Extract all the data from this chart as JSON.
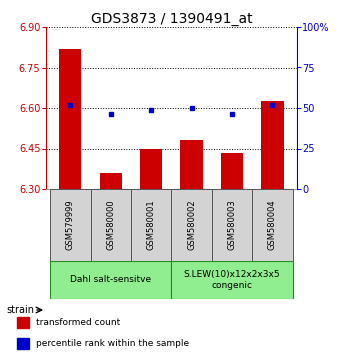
{
  "title": "GDS3873 / 1390491_at",
  "samples": [
    "GSM579999",
    "GSM580000",
    "GSM580001",
    "GSM580002",
    "GSM580003",
    "GSM580004"
  ],
  "red_values": [
    6.82,
    6.36,
    6.45,
    6.48,
    6.435,
    6.625
  ],
  "blue_values": [
    52,
    46,
    49,
    50,
    46,
    52
  ],
  "ylim_left": [
    6.3,
    6.9
  ],
  "ylim_right": [
    0,
    100
  ],
  "yticks_left": [
    6.3,
    6.45,
    6.6,
    6.75,
    6.9
  ],
  "yticks_right": [
    0,
    25,
    50,
    75,
    100
  ],
  "bar_color": "#cc0000",
  "dot_color": "#0000cc",
  "bar_bottom": 6.3,
  "left_tick_color": "#cc0000",
  "right_tick_color": "#0000cc",
  "title_fontsize": 10,
  "tick_fontsize": 7,
  "sample_fontsize": 6,
  "group_fontsize": 6.5,
  "legend_fontsize": 6.5,
  "group1_label": "Dahl salt-sensitve",
  "group2_label": "S.LEW(10)x12x2x3x5\ncongenic",
  "group_color": "#90EE90",
  "group_edge_color": "#228B22",
  "sample_box_color": "#d3d3d3",
  "sample_box_edge": "#555555"
}
